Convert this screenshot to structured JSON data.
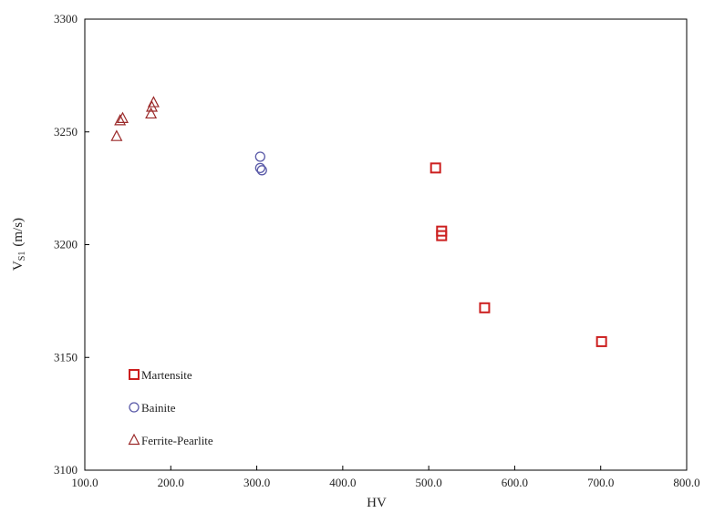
{
  "chart_data": {
    "type": "scatter",
    "title": "",
    "xlabel": "HV",
    "ylabel_main": "V",
    "ylabel_sub": "S1",
    "ylabel_unit": "(m/s)",
    "xlim": [
      100,
      800
    ],
    "ylim": [
      3100,
      3300
    ],
    "x_ticks": [
      100,
      200,
      300,
      400,
      500,
      600,
      700,
      800
    ],
    "x_tick_labels": [
      "100.0",
      "200.0",
      "300.0",
      "400.0",
      "500.0",
      "600.0",
      "700.0",
      "800.0"
    ],
    "y_ticks": [
      3100,
      3150,
      3200,
      3250,
      3300
    ],
    "y_tick_labels": [
      "3100",
      "3150",
      "3200",
      "3250",
      "3300"
    ],
    "grid": false,
    "legend_position": "bottom-left",
    "series": [
      {
        "name": "Martensite",
        "marker": "square",
        "color": "#cc1f1f",
        "points": [
          [
            508,
            3234
          ],
          [
            515,
            3206
          ],
          [
            515,
            3204
          ],
          [
            565,
            3172
          ],
          [
            701,
            3157
          ]
        ]
      },
      {
        "name": "Bainite",
        "marker": "circle",
        "color": "#5a5aa8",
        "points": [
          [
            304,
            3239
          ],
          [
            304,
            3234
          ],
          [
            306,
            3233
          ]
        ]
      },
      {
        "name": "Ferrite-Pearlite",
        "marker": "triangle",
        "color": "#9b2a2a",
        "points": [
          [
            137,
            3248
          ],
          [
            141,
            3255
          ],
          [
            144,
            3256
          ],
          [
            177,
            3258
          ],
          [
            178,
            3261
          ],
          [
            180,
            3263
          ]
        ]
      }
    ]
  }
}
